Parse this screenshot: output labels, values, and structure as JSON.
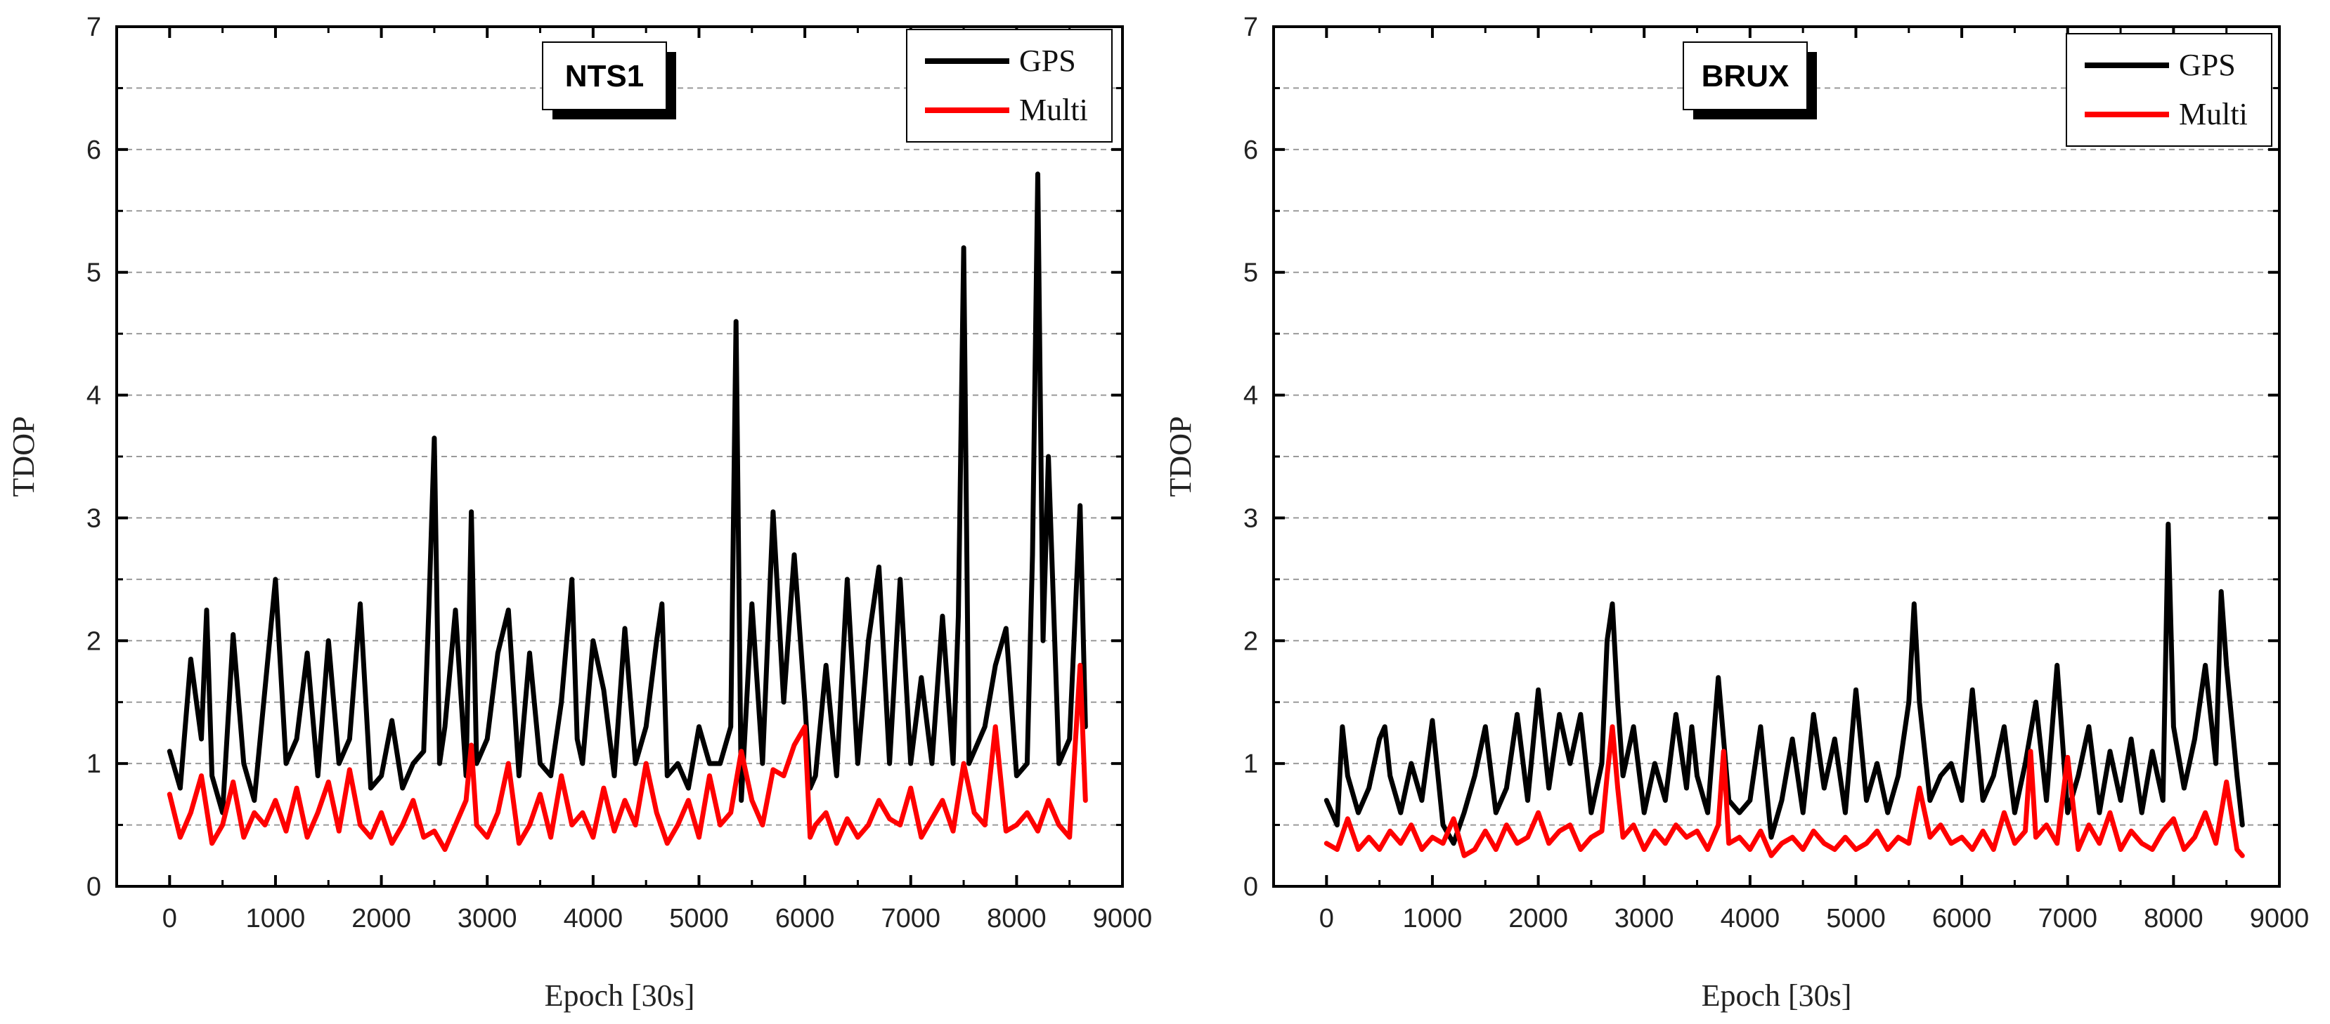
{
  "figure": {
    "charts": [
      {
        "id": "nts1",
        "station": "NTS1",
        "ylabel": "TDOP",
        "xlabel": "Epoch [30s]"
      },
      {
        "id": "brux",
        "station": "BRUX",
        "ylabel": "TDOP",
        "xlabel": "Epoch [30s]"
      }
    ]
  },
  "chart_data": [
    {
      "type": "line",
      "title": "NTS1",
      "xlabel": "Epoch [30s]",
      "ylabel": "TDOP",
      "xlim": [
        -500,
        9000
      ],
      "ylim": [
        0,
        7
      ],
      "xticks": [
        "0",
        "1000",
        "2000",
        "3000",
        "4000",
        "5000",
        "6000",
        "7000",
        "8000",
        "9000"
      ],
      "yticks": [
        "0",
        "1",
        "2",
        "3",
        "4",
        "5",
        "6",
        "7"
      ],
      "gridlines_y": [
        0.5,
        1,
        1.5,
        2,
        2.5,
        3,
        3.5,
        4,
        4.5,
        5,
        5.5,
        6,
        6.5
      ],
      "legend_position": "top-right",
      "series": [
        {
          "name": "GPS",
          "color": "#000000",
          "x": [
            0,
            100,
            200,
            300,
            350,
            400,
            500,
            600,
            700,
            800,
            900,
            1000,
            1100,
            1200,
            1300,
            1400,
            1500,
            1600,
            1700,
            1800,
            1900,
            2000,
            2100,
            2200,
            2300,
            2400,
            2450,
            2500,
            2550,
            2600,
            2700,
            2800,
            2850,
            2900,
            3000,
            3100,
            3200,
            3300,
            3400,
            3500,
            3600,
            3700,
            3800,
            3850,
            3900,
            4000,
            4100,
            4200,
            4300,
            4400,
            4500,
            4600,
            4650,
            4700,
            4800,
            4900,
            5000,
            5100,
            5200,
            5300,
            5350,
            5400,
            5500,
            5600,
            5700,
            5800,
            5900,
            6000,
            6050,
            6100,
            6200,
            6300,
            6400,
            6500,
            6600,
            6700,
            6800,
            6900,
            7000,
            7100,
            7200,
            7300,
            7400,
            7450,
            7500,
            7550,
            7600,
            7700,
            7800,
            7900,
            8000,
            8100,
            8150,
            8200,
            8250,
            8300,
            8400,
            8500,
            8600,
            8650
          ],
          "values": [
            1.1,
            0.8,
            1.85,
            1.2,
            2.25,
            0.9,
            0.6,
            2.05,
            1.0,
            0.7,
            1.6,
            2.5,
            1.0,
            1.2,
            1.9,
            0.9,
            2.0,
            1.0,
            1.2,
            2.3,
            0.8,
            0.9,
            1.35,
            0.8,
            1.0,
            1.1,
            2.3,
            3.65,
            1.0,
            1.3,
            2.25,
            0.9,
            3.05,
            1.0,
            1.2,
            1.9,
            2.25,
            0.9,
            1.9,
            1.0,
            0.9,
            1.5,
            2.5,
            1.2,
            1.0,
            2.0,
            1.6,
            0.9,
            2.1,
            1.0,
            1.3,
            2.0,
            2.3,
            0.9,
            1.0,
            0.8,
            1.3,
            1.0,
            1.0,
            1.3,
            4.6,
            0.7,
            2.3,
            1.0,
            3.05,
            1.5,
            2.7,
            1.5,
            0.8,
            0.9,
            1.8,
            0.9,
            2.5,
            1.0,
            2.0,
            2.6,
            1.0,
            2.5,
            1.0,
            1.7,
            1.0,
            2.2,
            1.0,
            2.2,
            5.2,
            1.0,
            1.1,
            1.3,
            1.8,
            2.1,
            0.9,
            1.0,
            2.7,
            5.8,
            2.0,
            3.5,
            1.0,
            1.2,
            3.1,
            1.3
          ]
        },
        {
          "name": "Multi",
          "color": "#ff0000",
          "x": [
            0,
            100,
            200,
            300,
            400,
            500,
            600,
            700,
            800,
            900,
            1000,
            1100,
            1200,
            1300,
            1400,
            1500,
            1600,
            1700,
            1800,
            1900,
            2000,
            2100,
            2200,
            2300,
            2400,
            2500,
            2600,
            2700,
            2800,
            2850,
            2900,
            3000,
            3100,
            3200,
            3300,
            3400,
            3500,
            3600,
            3700,
            3800,
            3900,
            4000,
            4100,
            4200,
            4300,
            4400,
            4500,
            4600,
            4700,
            4800,
            4900,
            5000,
            5100,
            5200,
            5300,
            5400,
            5500,
            5600,
            5700,
            5800,
            5900,
            6000,
            6050,
            6100,
            6200,
            6300,
            6400,
            6500,
            6600,
            6700,
            6800,
            6900,
            7000,
            7100,
            7200,
            7300,
            7400,
            7500,
            7600,
            7700,
            7800,
            7900,
            8000,
            8100,
            8200,
            8300,
            8400,
            8500,
            8600,
            8650
          ],
          "values": [
            0.75,
            0.4,
            0.6,
            0.9,
            0.35,
            0.5,
            0.85,
            0.4,
            0.6,
            0.5,
            0.7,
            0.45,
            0.8,
            0.4,
            0.6,
            0.85,
            0.45,
            0.95,
            0.5,
            0.4,
            0.6,
            0.35,
            0.5,
            0.7,
            0.4,
            0.45,
            0.3,
            0.5,
            0.7,
            1.15,
            0.5,
            0.4,
            0.6,
            1.0,
            0.35,
            0.5,
            0.75,
            0.4,
            0.9,
            0.5,
            0.6,
            0.4,
            0.8,
            0.45,
            0.7,
            0.5,
            1.0,
            0.6,
            0.35,
            0.5,
            0.7,
            0.4,
            0.9,
            0.5,
            0.6,
            1.1,
            0.7,
            0.5,
            0.95,
            0.9,
            1.15,
            1.3,
            0.4,
            0.5,
            0.6,
            0.35,
            0.55,
            0.4,
            0.5,
            0.7,
            0.55,
            0.5,
            0.8,
            0.4,
            0.55,
            0.7,
            0.45,
            1.0,
            0.6,
            0.5,
            1.3,
            0.45,
            0.5,
            0.6,
            0.45,
            0.7,
            0.5,
            0.4,
            1.8,
            0.7
          ]
        }
      ]
    },
    {
      "type": "line",
      "title": "BRUX",
      "xlabel": "Epoch [30s]",
      "ylabel": "TDOP",
      "xlim": [
        -500,
        9000
      ],
      "ylim": [
        0,
        7
      ],
      "xticks": [
        "0",
        "1000",
        "2000",
        "3000",
        "4000",
        "5000",
        "6000",
        "7000",
        "8000",
        "9000"
      ],
      "yticks": [
        "0",
        "1",
        "2",
        "3",
        "4",
        "5",
        "6",
        "7"
      ],
      "gridlines_y": [
        0.5,
        1,
        1.5,
        2,
        2.5,
        3,
        3.5,
        4,
        4.5,
        5,
        5.5,
        6,
        6.5
      ],
      "legend_position": "top-right",
      "series": [
        {
          "name": "GPS",
          "color": "#000000",
          "x": [
            0,
            100,
            150,
            200,
            300,
            400,
            500,
            550,
            600,
            700,
            800,
            900,
            1000,
            1100,
            1200,
            1300,
            1400,
            1500,
            1600,
            1700,
            1800,
            1900,
            2000,
            2100,
            2200,
            2300,
            2400,
            2500,
            2600,
            2650,
            2700,
            2750,
            2800,
            2900,
            3000,
            3100,
            3200,
            3300,
            3400,
            3450,
            3500,
            3600,
            3700,
            3800,
            3900,
            4000,
            4100,
            4200,
            4300,
            4400,
            4500,
            4600,
            4700,
            4800,
            4900,
            5000,
            5100,
            5200,
            5300,
            5400,
            5500,
            5550,
            5600,
            5700,
            5800,
            5900,
            6000,
            6100,
            6200,
            6300,
            6400,
            6500,
            6600,
            6700,
            6800,
            6900,
            7000,
            7100,
            7200,
            7300,
            7400,
            7500,
            7600,
            7700,
            7800,
            7900,
            7950,
            8000,
            8100,
            8200,
            8300,
            8400,
            8450,
            8500,
            8600,
            8650
          ],
          "values": [
            0.7,
            0.5,
            1.3,
            0.9,
            0.6,
            0.8,
            1.2,
            1.3,
            0.9,
            0.6,
            1.0,
            0.7,
            1.35,
            0.5,
            0.35,
            0.6,
            0.9,
            1.3,
            0.6,
            0.8,
            1.4,
            0.7,
            1.6,
            0.8,
            1.4,
            1.0,
            1.4,
            0.6,
            1.0,
            2.0,
            2.3,
            1.5,
            0.9,
            1.3,
            0.6,
            1.0,
            0.7,
            1.4,
            0.8,
            1.3,
            0.9,
            0.6,
            1.7,
            0.7,
            0.6,
            0.7,
            1.3,
            0.4,
            0.7,
            1.2,
            0.6,
            1.4,
            0.8,
            1.2,
            0.6,
            1.6,
            0.7,
            1.0,
            0.6,
            0.9,
            1.5,
            2.3,
            1.5,
            0.7,
            0.9,
            1.0,
            0.7,
            1.6,
            0.7,
            0.9,
            1.3,
            0.6,
            1.0,
            1.5,
            0.7,
            1.8,
            0.6,
            0.9,
            1.3,
            0.6,
            1.1,
            0.7,
            1.2,
            0.6,
            1.1,
            0.7,
            2.95,
            1.3,
            0.8,
            1.2,
            1.8,
            1.0,
            2.4,
            1.8,
            0.9,
            0.5
          ]
        },
        {
          "name": "Multi",
          "color": "#ff0000",
          "x": [
            0,
            100,
            200,
            300,
            400,
            500,
            600,
            700,
            800,
            900,
            1000,
            1100,
            1200,
            1300,
            1400,
            1500,
            1600,
            1700,
            1800,
            1900,
            2000,
            2100,
            2200,
            2300,
            2400,
            2500,
            2600,
            2650,
            2700,
            2750,
            2800,
            2900,
            3000,
            3100,
            3200,
            3300,
            3400,
            3500,
            3600,
            3700,
            3750,
            3800,
            3900,
            4000,
            4100,
            4200,
            4300,
            4400,
            4500,
            4600,
            4700,
            4800,
            4900,
            5000,
            5100,
            5200,
            5300,
            5400,
            5500,
            5600,
            5700,
            5800,
            5900,
            6000,
            6100,
            6200,
            6300,
            6400,
            6500,
            6600,
            6650,
            6700,
            6800,
            6900,
            7000,
            7100,
            7200,
            7300,
            7400,
            7500,
            7600,
            7700,
            7800,
            7900,
            8000,
            8100,
            8200,
            8300,
            8400,
            8500,
            8600,
            8650
          ],
          "values": [
            0.35,
            0.3,
            0.55,
            0.3,
            0.4,
            0.3,
            0.45,
            0.35,
            0.5,
            0.3,
            0.4,
            0.35,
            0.55,
            0.25,
            0.3,
            0.45,
            0.3,
            0.5,
            0.35,
            0.4,
            0.6,
            0.35,
            0.45,
            0.5,
            0.3,
            0.4,
            0.45,
            0.9,
            1.3,
            0.8,
            0.4,
            0.5,
            0.3,
            0.45,
            0.35,
            0.5,
            0.4,
            0.45,
            0.3,
            0.5,
            1.1,
            0.35,
            0.4,
            0.3,
            0.45,
            0.25,
            0.35,
            0.4,
            0.3,
            0.45,
            0.35,
            0.3,
            0.4,
            0.3,
            0.35,
            0.45,
            0.3,
            0.4,
            0.35,
            0.8,
            0.4,
            0.5,
            0.35,
            0.4,
            0.3,
            0.45,
            0.3,
            0.6,
            0.35,
            0.45,
            1.1,
            0.4,
            0.5,
            0.35,
            1.05,
            0.3,
            0.5,
            0.35,
            0.6,
            0.3,
            0.45,
            0.35,
            0.3,
            0.45,
            0.55,
            0.3,
            0.4,
            0.6,
            0.35,
            0.85,
            0.3,
            0.25
          ]
        }
      ]
    }
  ]
}
